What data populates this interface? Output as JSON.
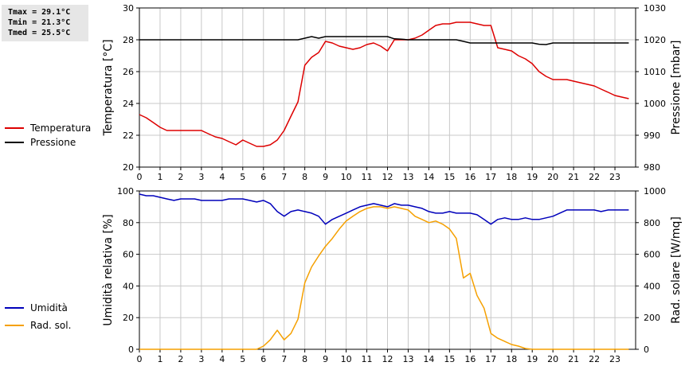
{
  "stats": {
    "tmax": "Tmax = 29.1°C",
    "tmin": "Tmin = 21.3°C",
    "tmed": "Tmed = 25.5°C"
  },
  "colors": {
    "temperature": "#dd0000",
    "pressure": "#000000",
    "humidity": "#0000bb",
    "solar": "#f5a000",
    "grid": "#c8c8c8"
  },
  "chart_data": [
    {
      "type": "line",
      "ylabel": "Temperatura [°C]",
      "y2label": "Pressione [mbar]",
      "xlim": [
        0,
        24
      ],
      "ylim": [
        20,
        30
      ],
      "y2lim": [
        980,
        1030
      ],
      "x_ticks": [
        "0",
        "1",
        "2",
        "3",
        "4",
        "5",
        "6",
        "7",
        "8",
        "9",
        "10",
        "11",
        "12",
        "13",
        "14",
        "15",
        "16",
        "17",
        "18",
        "19",
        "20",
        "21",
        "22",
        "23"
      ],
      "y_ticks": [
        "20",
        "22",
        "24",
        "26",
        "28",
        "30"
      ],
      "y2_ticks": [
        "980",
        "990",
        "1000",
        "1010",
        "1020",
        "1030"
      ],
      "grid": true,
      "legend_position": "left",
      "series": [
        {
          "name": "Temperatura",
          "axis": "left",
          "x": [
            0,
            0.33,
            0.67,
            1,
            1.33,
            1.67,
            2,
            2.33,
            2.67,
            3,
            3.33,
            3.67,
            4,
            4.33,
            4.67,
            5,
            5.33,
            5.67,
            6,
            6.33,
            6.67,
            7,
            7.33,
            7.67,
            8,
            8.33,
            8.67,
            9,
            9.33,
            9.67,
            10,
            10.33,
            10.67,
            11,
            11.33,
            11.67,
            12,
            12.33,
            12.67,
            13,
            13.33,
            13.67,
            14,
            14.33,
            14.67,
            15,
            15.33,
            15.67,
            16,
            16.33,
            16.67,
            17,
            17.33,
            17.67,
            18,
            18.33,
            18.67,
            19,
            19.33,
            19.67,
            20,
            20.33,
            20.67,
            21,
            21.33,
            21.67,
            22,
            22.33,
            22.67,
            23,
            23.33,
            23.67
          ],
          "values": [
            23.3,
            23.1,
            22.8,
            22.5,
            22.3,
            22.3,
            22.3,
            22.3,
            22.3,
            22.3,
            22.1,
            21.9,
            21.8,
            21.6,
            21.4,
            21.7,
            21.5,
            21.3,
            21.3,
            21.4,
            21.7,
            22.3,
            23.2,
            24.1,
            26.4,
            26.9,
            27.2,
            27.9,
            27.8,
            27.6,
            27.5,
            27.4,
            27.5,
            27.7,
            27.8,
            27.6,
            27.3,
            28.0,
            28.0,
            28.0,
            28.1,
            28.3,
            28.6,
            28.9,
            29.0,
            29.0,
            29.1,
            29.1,
            29.1,
            29.0,
            28.9,
            28.9,
            27.5,
            27.4,
            27.3,
            27.0,
            26.8,
            26.5,
            26.0,
            25.7,
            25.5,
            25.5,
            25.5,
            25.4,
            25.3,
            25.2,
            25.1,
            24.9,
            24.7,
            24.5,
            24.4,
            24.3
          ]
        },
        {
          "name": "Pressione",
          "axis": "right",
          "x": [
            0,
            7.67,
            8,
            8.33,
            8.67,
            9,
            11.67,
            12,
            12.33,
            12.67,
            13,
            15.33,
            15.67,
            16,
            19,
            19.33,
            19.67,
            20,
            23.67
          ],
          "values": [
            1020,
            1020,
            1020.5,
            1021,
            1020.5,
            1021,
            1021,
            1021,
            1020.3,
            1020.2,
            1020,
            1020,
            1019.5,
            1019,
            1019,
            1018.6,
            1018.5,
            1019,
            1019
          ]
        }
      ]
    },
    {
      "type": "line",
      "ylabel": "Umidità relativa [%]",
      "y2label": "Rad. solare [W/mq]",
      "xlim": [
        0,
        24
      ],
      "ylim": [
        0,
        100
      ],
      "y2lim": [
        0,
        1000
      ],
      "x_ticks": [
        "0",
        "1",
        "2",
        "3",
        "4",
        "5",
        "6",
        "7",
        "8",
        "9",
        "10",
        "11",
        "12",
        "13",
        "14",
        "15",
        "16",
        "17",
        "18",
        "19",
        "20",
        "21",
        "22",
        "23"
      ],
      "y_ticks": [
        "0",
        "20",
        "40",
        "60",
        "80",
        "100"
      ],
      "y2_ticks": [
        "0",
        "200",
        "400",
        "600",
        "800",
        "1000"
      ],
      "grid": true,
      "legend_position": "left",
      "series": [
        {
          "name": "Umidità",
          "axis": "left",
          "x": [
            0,
            0.33,
            0.67,
            1,
            1.33,
            1.67,
            2,
            2.33,
            2.67,
            3,
            3.33,
            3.67,
            4,
            4.33,
            4.67,
            5,
            5.33,
            5.67,
            6,
            6.33,
            6.67,
            7,
            7.33,
            7.67,
            8,
            8.33,
            8.67,
            9,
            9.33,
            9.67,
            10,
            10.33,
            10.67,
            11,
            11.33,
            11.67,
            12,
            12.33,
            12.67,
            13,
            13.33,
            13.67,
            14,
            14.33,
            14.67,
            15,
            15.33,
            15.67,
            16,
            16.33,
            16.67,
            17,
            17.33,
            17.67,
            18,
            18.33,
            18.67,
            19,
            19.33,
            19.67,
            20,
            20.33,
            20.67,
            21,
            21.33,
            21.67,
            22,
            22.33,
            22.67,
            23,
            23.33,
            23.67
          ],
          "values": [
            98,
            97,
            97,
            96,
            95,
            94,
            95,
            95,
            95,
            94,
            94,
            94,
            94,
            95,
            95,
            95,
            94,
            93,
            94,
            92,
            87,
            84,
            87,
            88,
            87,
            86,
            84,
            79,
            82,
            84,
            86,
            88,
            90,
            91,
            92,
            91,
            90,
            92,
            91,
            91,
            90,
            89,
            87,
            86,
            86,
            87,
            86,
            86,
            86,
            85,
            82,
            79,
            82,
            83,
            82,
            82,
            83,
            82,
            82,
            83,
            84,
            86,
            88,
            88,
            88,
            88,
            88,
            87,
            88,
            88,
            88,
            88
          ]
        },
        {
          "name": "Rad. sol.",
          "axis": "right",
          "x": [
            0,
            5.67,
            6,
            6.33,
            6.67,
            7,
            7.33,
            7.67,
            8,
            8.33,
            8.67,
            9,
            9.33,
            9.67,
            10,
            10.33,
            10.67,
            11,
            11.33,
            11.67,
            12,
            12.33,
            12.67,
            13,
            13.33,
            13.67,
            14,
            14.33,
            14.67,
            15,
            15.33,
            15.67,
            16,
            16.33,
            16.67,
            17,
            17.33,
            17.67,
            18,
            18.33,
            18.67,
            19,
            19.33,
            19.67,
            20,
            23.67
          ],
          "values": [
            0,
            0,
            20,
            60,
            120,
            60,
            100,
            190,
            420,
            520,
            590,
            650,
            700,
            760,
            810,
            840,
            870,
            890,
            900,
            900,
            890,
            900,
            890,
            880,
            840,
            820,
            800,
            810,
            790,
            760,
            700,
            450,
            480,
            340,
            260,
            100,
            70,
            50,
            30,
            20,
            5,
            0,
            0,
            0,
            0,
            0
          ]
        }
      ]
    }
  ]
}
